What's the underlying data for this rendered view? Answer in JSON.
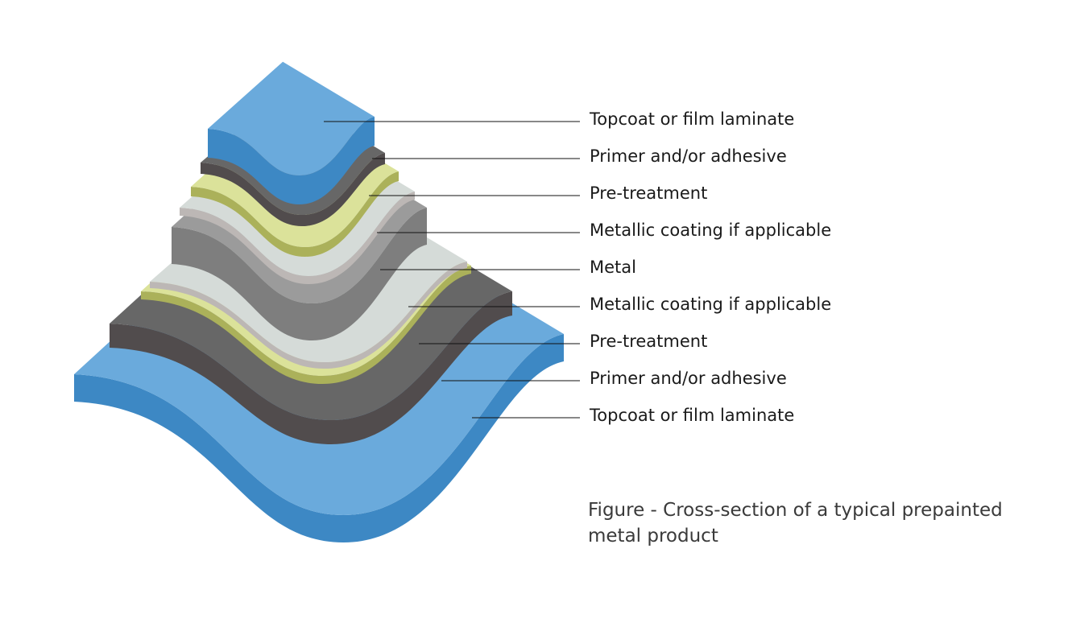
{
  "labels": [
    "Topcoat or film laminate",
    "Primer and/or adhesive",
    "Pre-treatment",
    "Metallic coating if applicable",
    "Metal",
    "Metallic coating if applicable",
    "Pre-treatment",
    "Primer and/or adhesive",
    "Topcoat or film laminate"
  ],
  "caption": {
    "line1": "Figure -  Cross-section of a typical prepainted",
    "line2": "metal product"
  },
  "colors": {
    "topcoat": {
      "top": "#6aaadc",
      "side": "#3d88c4"
    },
    "primer": {
      "top": "#676767",
      "side": "#514c4d"
    },
    "pretreatment": {
      "top": "#dbe29a",
      "side": "#abb15a"
    },
    "metallic_coating": {
      "top": "#d5dbd8",
      "side": "#bcb7b5"
    },
    "metal": {
      "top": "#9b9b9b",
      "side": "#7e7e7e"
    }
  }
}
